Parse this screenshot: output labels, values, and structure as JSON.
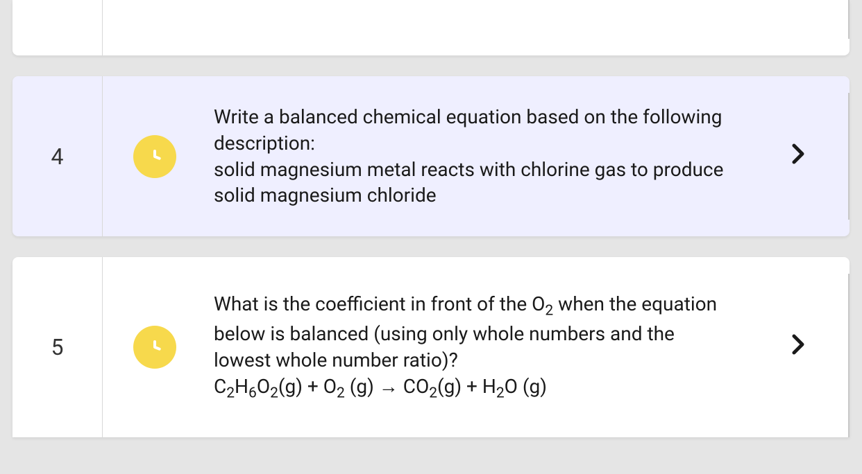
{
  "questions": [
    {
      "number": "4",
      "status_icon": "clock",
      "status_color": "#f7d94c",
      "highlighted": true,
      "text_line1": "Write a balanced chemical equation based on the following description:",
      "text_line2": "solid magnesium metal reacts with chlorine gas to produce solid magnesium chloride"
    },
    {
      "number": "5",
      "status_icon": "clock",
      "status_color": "#f7d94c",
      "highlighted": false,
      "text_html": "What is the coefficient in front of the O₂ when the equation below is balanced (using only whole numbers and the lowest whole number ratio)?<br>C₂H₆O₂(g) + O₂ (g) → CO₂(g) + H₂O (g)"
    }
  ],
  "colors": {
    "page_bg": "#e5e5e5",
    "card_bg": "#ffffff",
    "card_highlight_bg": "#efefff",
    "divider": "#d8d8d8",
    "rail": "#c8c8c8",
    "text": "#1a1a1a",
    "badge": "#f7d94c"
  },
  "typography": {
    "number_fontsize": 32,
    "question_fontsize": 28
  }
}
